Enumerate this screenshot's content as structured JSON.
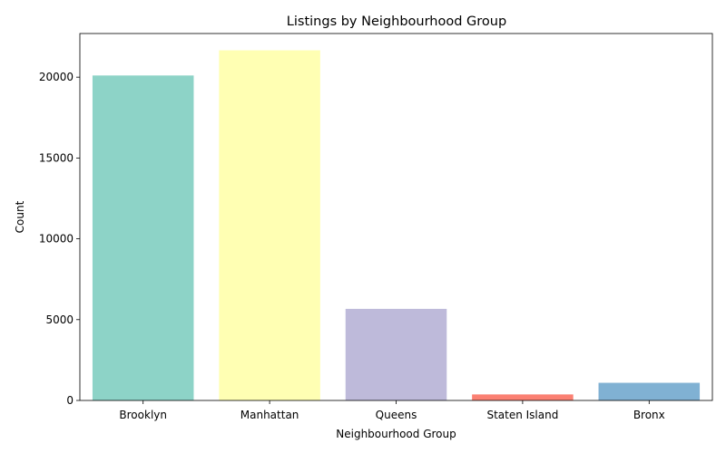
{
  "chart_data": {
    "type": "bar",
    "title": "Listings by Neighbourhood Group",
    "xlabel": "Neighbourhood Group",
    "ylabel": "Count",
    "categories": [
      "Brooklyn",
      "Manhattan",
      "Queens",
      "Staten Island",
      "Bronx"
    ],
    "values": [
      20104,
      21661,
      5666,
      373,
      1091
    ],
    "colors": [
      "#8dd3c7",
      "#ffffb3",
      "#bebada",
      "#fb8072",
      "#80b1d3"
    ],
    "ylim": [
      0,
      22700
    ],
    "yticks": [
      0,
      5000,
      10000,
      15000,
      20000
    ],
    "grid": false,
    "legend": "none"
  }
}
